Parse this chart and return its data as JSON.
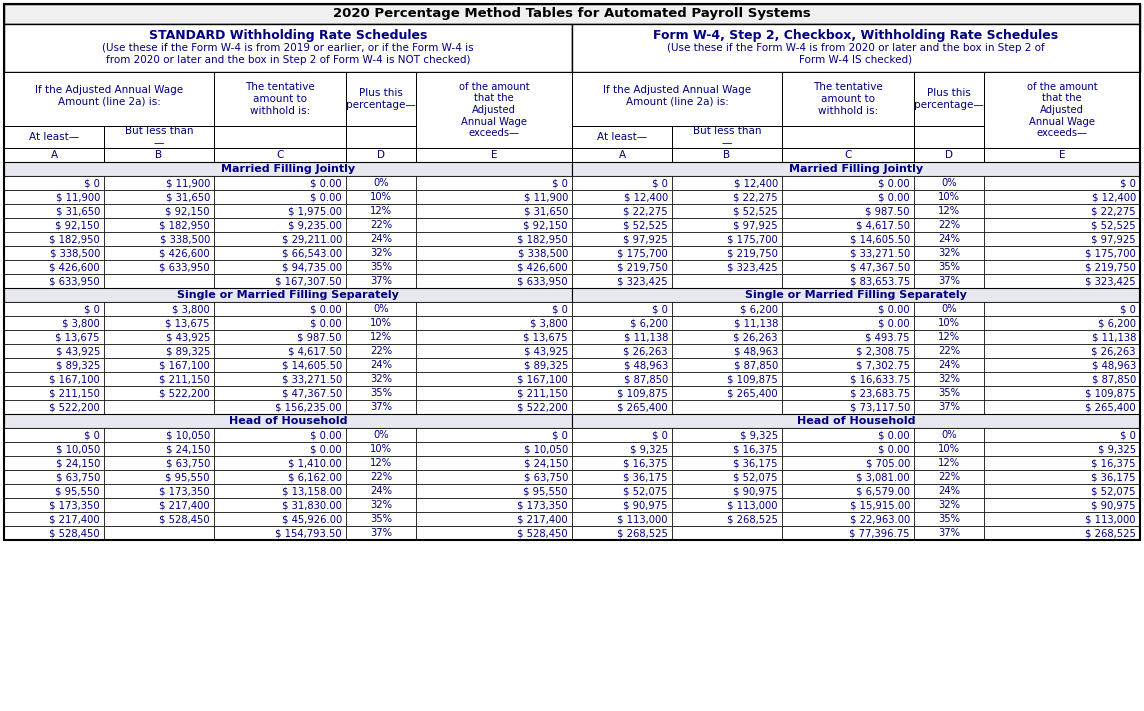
{
  "title": "2020 Percentage Method Tables for Automated Payroll Systems",
  "left_header1": "STANDARD Withholding Rate Schedules",
  "left_header2_line1": "(Use these if the Form W-4 is from 2019 or earlier, or if the Form W-4 is",
  "left_header2_line2": "from 2020 or later and the box in Step 2 of Form W-4 is ",
  "left_header2_bold": "NOT",
  "left_header2_end": " checked)",
  "right_header1": "Form W-4, Step 2, Checkbox, Withholding Rate Schedules",
  "right_header2_line1": "(Use these if the Form W-4 is from 2020 or later and the box in Step 2 of",
  "right_header2_line2": "Form W-4 ",
  "right_header2_bold": "IS",
  "right_header2_end": " checked)",
  "sections": [
    {
      "name": "Married Filling Jointly",
      "left_rows": [
        [
          "$ 0",
          "$ 11,900",
          "$ 0.00",
          "0%",
          "$ 0"
        ],
        [
          "$ 11,900",
          "$ 31,650",
          "$ 0.00",
          "10%",
          "$ 11,900"
        ],
        [
          "$ 31,650",
          "$ 92,150",
          "$ 1,975.00",
          "12%",
          "$ 31,650"
        ],
        [
          "$ 92,150",
          "$ 182,950",
          "$ 9,235.00",
          "22%",
          "$ 92,150"
        ],
        [
          "$ 182,950",
          "$ 338,500",
          "$ 29,211.00",
          "24%",
          "$ 182,950"
        ],
        [
          "$ 338,500",
          "$ 426,600",
          "$ 66,543.00",
          "32%",
          "$ 338,500"
        ],
        [
          "$ 426,600",
          "$ 633,950",
          "$ 94,735.00",
          "35%",
          "$ 426,600"
        ],
        [
          "$ 633,950",
          "",
          "$ 167,307.50",
          "37%",
          "$ 633,950"
        ]
      ],
      "right_rows": [
        [
          "$ 0",
          "$ 12,400",
          "$ 0.00",
          "0%",
          "$ 0"
        ],
        [
          "$ 12,400",
          "$ 22,275",
          "$ 0.00",
          "10%",
          "$ 12,400"
        ],
        [
          "$ 22,275",
          "$ 52,525",
          "$ 987.50",
          "12%",
          "$ 22,275"
        ],
        [
          "$ 52,525",
          "$ 97,925",
          "$ 4,617.50",
          "22%",
          "$ 52,525"
        ],
        [
          "$ 97,925",
          "$ 175,700",
          "$ 14,605.50",
          "24%",
          "$ 97,925"
        ],
        [
          "$ 175,700",
          "$ 219,750",
          "$ 33,271.50",
          "32%",
          "$ 175,700"
        ],
        [
          "$ 219,750",
          "$ 323,425",
          "$ 47,367.50",
          "35%",
          "$ 219,750"
        ],
        [
          "$ 323,425",
          "",
          "$ 83,653.75",
          "37%",
          "$ 323,425"
        ]
      ]
    },
    {
      "name": "Single or Married Filling Separately",
      "left_rows": [
        [
          "$ 0",
          "$ 3,800",
          "$ 0.00",
          "0%",
          "$ 0"
        ],
        [
          "$ 3,800",
          "$ 13,675",
          "$ 0.00",
          "10%",
          "$ 3,800"
        ],
        [
          "$ 13,675",
          "$ 43,925",
          "$ 987.50",
          "12%",
          "$ 13,675"
        ],
        [
          "$ 43,925",
          "$ 89,325",
          "$ 4,617.50",
          "22%",
          "$ 43,925"
        ],
        [
          "$ 89,325",
          "$ 167,100",
          "$ 14,605.50",
          "24%",
          "$ 89,325"
        ],
        [
          "$ 167,100",
          "$ 211,150",
          "$ 33,271.50",
          "32%",
          "$ 167,100"
        ],
        [
          "$ 211,150",
          "$ 522,200",
          "$ 47,367.50",
          "35%",
          "$ 211,150"
        ],
        [
          "$ 522,200",
          "",
          "$ 156,235.00",
          "37%",
          "$ 522,200"
        ]
      ],
      "right_rows": [
        [
          "$ 0",
          "$ 6,200",
          "$ 0.00",
          "0%",
          "$ 0"
        ],
        [
          "$ 6,200",
          "$ 11,138",
          "$ 0.00",
          "10%",
          "$ 6,200"
        ],
        [
          "$ 11,138",
          "$ 26,263",
          "$ 493.75",
          "12%",
          "$ 11,138"
        ],
        [
          "$ 26,263",
          "$ 48,963",
          "$ 2,308.75",
          "22%",
          "$ 26,263"
        ],
        [
          "$ 48,963",
          "$ 87,850",
          "$ 7,302.75",
          "24%",
          "$ 48,963"
        ],
        [
          "$ 87,850",
          "$ 109,875",
          "$ 16,633.75",
          "32%",
          "$ 87,850"
        ],
        [
          "$ 109,875",
          "$ 265,400",
          "$ 23,683.75",
          "35%",
          "$ 109,875"
        ],
        [
          "$ 265,400",
          "",
          "$ 73,117.50",
          "37%",
          "$ 265,400"
        ]
      ]
    },
    {
      "name": "Head of Household",
      "left_rows": [
        [
          "$ 0",
          "$ 10,050",
          "$ 0.00",
          "0%",
          "$ 0"
        ],
        [
          "$ 10,050",
          "$ 24,150",
          "$ 0.00",
          "10%",
          "$ 10,050"
        ],
        [
          "$ 24,150",
          "$ 63,750",
          "$ 1,410.00",
          "12%",
          "$ 24,150"
        ],
        [
          "$ 63,750",
          "$ 95,550",
          "$ 6,162.00",
          "22%",
          "$ 63,750"
        ],
        [
          "$ 95,550",
          "$ 173,350",
          "$ 13,158.00",
          "24%",
          "$ 95,550"
        ],
        [
          "$ 173,350",
          "$ 217,400",
          "$ 31,830.00",
          "32%",
          "$ 173,350"
        ],
        [
          "$ 217,400",
          "$ 528,450",
          "$ 45,926.00",
          "35%",
          "$ 217,400"
        ],
        [
          "$ 528,450",
          "",
          "$ 154,793.50",
          "37%",
          "$ 528,450"
        ]
      ],
      "right_rows": [
        [
          "$ 0",
          "$ 9,325",
          "$ 0.00",
          "0%",
          "$ 0"
        ],
        [
          "$ 9,325",
          "$ 16,375",
          "$ 0.00",
          "10%",
          "$ 9,325"
        ],
        [
          "$ 16,375",
          "$ 36,175",
          "$ 705.00",
          "12%",
          "$ 16,375"
        ],
        [
          "$ 36,175",
          "$ 52,075",
          "$ 3,081.00",
          "22%",
          "$ 36,175"
        ],
        [
          "$ 52,075",
          "$ 90,975",
          "$ 6,579.00",
          "24%",
          "$ 52,075"
        ],
        [
          "$ 90,975",
          "$ 113,000",
          "$ 15,915.00",
          "32%",
          "$ 90,975"
        ],
        [
          "$ 113,000",
          "$ 268,525",
          "$ 22,963.00",
          "35%",
          "$ 113,000"
        ],
        [
          "$ 268,525",
          "",
          "$ 77,396.75",
          "37%",
          "$ 268,525"
        ]
      ]
    }
  ]
}
